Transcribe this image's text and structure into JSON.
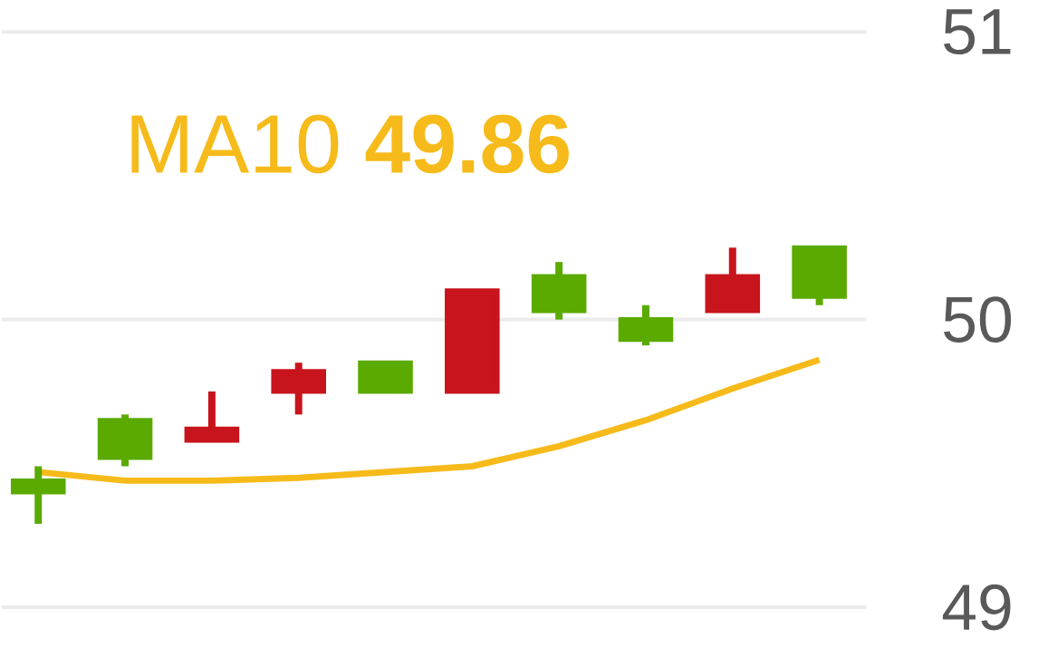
{
  "chart_data": {
    "type": "candlestick",
    "categories": [
      null,
      null,
      null,
      null,
      null,
      null,
      null,
      null,
      null,
      null
    ],
    "ohlc": [
      [
        49.4,
        49.49,
        49.29,
        49.44
      ],
      [
        49.52,
        49.67,
        49.49,
        49.65
      ],
      [
        49.62,
        49.75,
        49.58,
        49.58
      ],
      [
        49.82,
        49.85,
        49.67,
        49.75
      ],
      [
        49.75,
        49.85,
        49.75,
        49.85
      ],
      [
        50.1,
        50.1,
        49.75,
        49.75
      ],
      [
        50.03,
        50.2,
        50.0,
        50.15
      ],
      [
        49.93,
        50.05,
        49.91,
        50.0
      ],
      [
        50.15,
        50.25,
        50.03,
        50.03
      ],
      [
        50.08,
        50.25,
        50.05,
        50.25
      ]
    ],
    "colors": [
      "#5aaa00",
      "#5aaa00",
      "#c8141c",
      "#c8141c",
      "#5aaa00",
      "#c8141c",
      "#5aaa00",
      "#5aaa00",
      "#c8141c",
      "#5aaa00"
    ],
    "series": [
      {
        "type": "line",
        "color": "#f6bb1a",
        "values": [
          49.47,
          49.44,
          49.44,
          49.45,
          49.47,
          49.49,
          49.56,
          49.65,
          49.76,
          49.86
        ]
      }
    ],
    "ylim": [
      49,
      51
    ],
    "yticks": [
      49,
      50,
      51
    ],
    "grid": "y",
    "annotations": [
      "MA10 **49.86**"
    ]
  }
}
